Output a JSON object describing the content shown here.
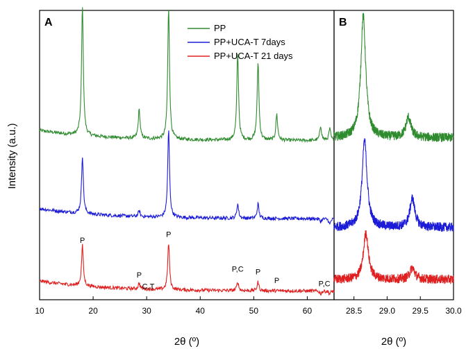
{
  "chart_data": [
    {
      "panel": "A",
      "type": "line",
      "xlabel": "2θ (º)",
      "ylabel": "Intensity (a.u.)",
      "xlim": [
        10,
        65
      ],
      "x_ticks": [
        "10",
        "20",
        "30",
        "40",
        "50",
        "60"
      ],
      "legend_position": "top-center",
      "grid": false,
      "series": [
        {
          "name": "PP",
          "color": "#2e8b2e",
          "baseline": 0.55,
          "peaks": [
            {
              "x": 18.0,
              "y": 1.0
            },
            {
              "x": 28.6,
              "y": 0.65
            },
            {
              "x": 34.1,
              "y": 1.0
            },
            {
              "x": 47.0,
              "y": 0.85
            },
            {
              "x": 50.8,
              "y": 0.82
            },
            {
              "x": 54.3,
              "y": 0.64
            },
            {
              "x": 62.5,
              "y": 0.6
            },
            {
              "x": 64.2,
              "y": 0.59
            }
          ]
        },
        {
          "name": "PP+UCA-T 7days",
          "color": "#1c1cd8",
          "baseline": 0.28,
          "peaks": [
            {
              "x": 18.0,
              "y": 0.48
            },
            {
              "x": 28.6,
              "y": 0.3
            },
            {
              "x": 34.1,
              "y": 0.58
            },
            {
              "x": 47.0,
              "y": 0.33
            },
            {
              "x": 50.8,
              "y": 0.33
            },
            {
              "x": 54.3,
              "y": 0.28
            },
            {
              "x": 62.5,
              "y": 0.27
            },
            {
              "x": 64.2,
              "y": 0.26
            }
          ]
        },
        {
          "name": "PP+UCA-T 21 days",
          "color": "#e02020",
          "baseline": 0.03,
          "peaks": [
            {
              "x": 18.0,
              "y": 0.17
            },
            {
              "x": 28.6,
              "y": 0.05
            },
            {
              "x": 34.1,
              "y": 0.19
            },
            {
              "x": 47.0,
              "y": 0.06
            },
            {
              "x": 50.8,
              "y": 0.06
            },
            {
              "x": 54.3,
              "y": 0.03
            },
            {
              "x": 62.5,
              "y": 0.02
            },
            {
              "x": 64.2,
              "y": 0.02
            }
          ]
        }
      ],
      "annotations": [
        {
          "text": "P",
          "x": 18.0,
          "y": 0.19
        },
        {
          "text": "P",
          "x": 28.6,
          "y": 0.07
        },
        {
          "text": "C,T",
          "x": 30.3,
          "y": 0.03
        },
        {
          "text": "P",
          "x": 34.1,
          "y": 0.21
        },
        {
          "text": "P,C",
          "x": 47.0,
          "y": 0.09
        },
        {
          "text": "P",
          "x": 50.8,
          "y": 0.08
        },
        {
          "text": "P",
          "x": 54.3,
          "y": 0.05
        },
        {
          "text": "P,C",
          "x": 63.2,
          "y": 0.04
        }
      ]
    },
    {
      "panel": "B",
      "type": "line",
      "xlabel": "2θ (º)",
      "xlim": [
        28.2,
        30.0
      ],
      "x_ticks": [
        "28.5",
        "29.0",
        "29.5",
        "30.0"
      ],
      "grid": false,
      "series": [
        {
          "name": "PP",
          "color": "#2e8b2e",
          "baseline": 0.56,
          "peaks": [
            {
              "x": 28.64,
              "y": 0.98
            },
            {
              "x": 29.32,
              "y": 0.63
            }
          ]
        },
        {
          "name": "PP+UCA-T 7days",
          "color": "#1c1cd8",
          "baseline": 0.25,
          "peaks": [
            {
              "x": 28.66,
              "y": 0.55
            },
            {
              "x": 29.38,
              "y": 0.35
            }
          ]
        },
        {
          "name": "PP+UCA-T 21 days",
          "color": "#e02020",
          "baseline": 0.07,
          "peaks": [
            {
              "x": 28.68,
              "y": 0.23
            },
            {
              "x": 29.38,
              "y": 0.11
            }
          ]
        }
      ]
    }
  ],
  "panels": {
    "a": {
      "label": "A"
    },
    "b": {
      "label": "B"
    }
  }
}
